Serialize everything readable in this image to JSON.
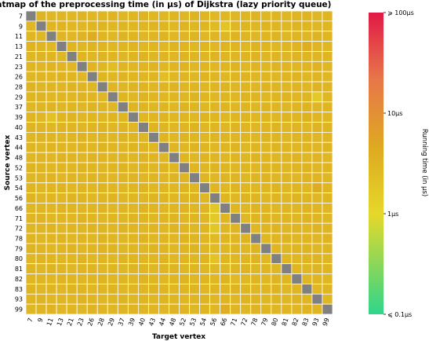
{
  "chart_data": {
    "type": "heatmap",
    "title": "Heatmap of the preprocessing time (in μs) of Dijkstra (lazy priority queue)",
    "xlabel": "Target vertex",
    "ylabel": "Source vertex",
    "rows": [
      "7",
      "9",
      "11",
      "13",
      "21",
      "23",
      "26",
      "28",
      "29",
      "37",
      "39",
      "40",
      "43",
      "44",
      "48",
      "52",
      "53",
      "54",
      "56",
      "66",
      "71",
      "72",
      "78",
      "79",
      "80",
      "81",
      "82",
      "83",
      "93",
      "99"
    ],
    "cols": [
      "7",
      "9",
      "11",
      "13",
      "21",
      "23",
      "26",
      "28",
      "29",
      "37",
      "39",
      "40",
      "43",
      "44",
      "48",
      "52",
      "53",
      "54",
      "56",
      "66",
      "71",
      "72",
      "78",
      "79",
      "80",
      "81",
      "82",
      "83",
      "93",
      "99"
    ],
    "diagonal": "no value (self-pair)",
    "values_us": [
      [
        null,
        3.2,
        3.0,
        3.1,
        3.0,
        3.2,
        2.9,
        3.1,
        3.3,
        3.0,
        3.1,
        3.2,
        2.9,
        3.0,
        3.1,
        3.0,
        3.2,
        3.1,
        2.8,
        2.9,
        3.0,
        3.1,
        3.2,
        3.0,
        3.1,
        3.0,
        3.1,
        3.2,
        3.0,
        3.1
      ],
      [
        3.0,
        null,
        3.1,
        3.2,
        2.9,
        3.0,
        3.1,
        3.3,
        3.0,
        3.1,
        2.9,
        3.0,
        3.2,
        3.1,
        3.0,
        3.2,
        3.0,
        3.1,
        2.7,
        1.9,
        3.0,
        3.1,
        3.0,
        3.2,
        3.1,
        3.0,
        3.2,
        3.1,
        3.0,
        3.1
      ],
      [
        3.1,
        3.0,
        null,
        3.1,
        3.0,
        3.2,
        4.2,
        3.1,
        3.0,
        3.2,
        3.1,
        3.0,
        3.1,
        3.2,
        3.0,
        3.1,
        3.2,
        3.0,
        3.1,
        3.0,
        3.2,
        3.1,
        3.0,
        3.1,
        3.2,
        3.0,
        3.1,
        3.0,
        3.2,
        3.1
      ],
      [
        3.2,
        3.1,
        3.0,
        null,
        3.1,
        3.0,
        3.2,
        3.1,
        3.0,
        3.1,
        3.2,
        3.0,
        3.1,
        3.0,
        3.2,
        3.1,
        3.0,
        3.1,
        3.0,
        3.2,
        3.1,
        3.0,
        3.2,
        3.1,
        3.0,
        3.1,
        3.3,
        4.0,
        3.1,
        3.0
      ],
      [
        3.0,
        3.2,
        3.1,
        3.0,
        null,
        3.1,
        3.0,
        3.2,
        3.1,
        3.0,
        3.1,
        3.2,
        3.0,
        3.1,
        3.0,
        3.2,
        3.1,
        3.0,
        3.2,
        3.1,
        3.0,
        3.1,
        3.2,
        3.0,
        3.1,
        3.0,
        3.2,
        3.1,
        3.0,
        3.1
      ],
      [
        3.1,
        3.0,
        3.2,
        3.1,
        3.0,
        null,
        3.1,
        3.0,
        2.4,
        3.1,
        3.0,
        3.1,
        3.2,
        3.0,
        3.1,
        3.2,
        3.0,
        3.1,
        3.0,
        3.1,
        3.2,
        3.0,
        3.1,
        3.0,
        3.2,
        3.1,
        3.0,
        3.1,
        3.2,
        3.0
      ],
      [
        3.0,
        3.1,
        3.0,
        3.2,
        3.1,
        3.0,
        null,
        3.1,
        3.0,
        3.2,
        3.1,
        3.0,
        3.1,
        2.3,
        3.0,
        3.1,
        3.0,
        3.2,
        3.1,
        3.0,
        3.1,
        3.2,
        3.0,
        3.1,
        3.0,
        3.1,
        3.2,
        3.0,
        3.1,
        3.0
      ],
      [
        3.2,
        3.0,
        3.1,
        3.0,
        3.2,
        3.1,
        3.0,
        null,
        3.1,
        3.0,
        3.2,
        3.1,
        3.0,
        3.1,
        3.2,
        3.0,
        3.1,
        3.0,
        3.1,
        3.2,
        3.0,
        3.1,
        3.0,
        3.2,
        3.1,
        3.0,
        3.1,
        3.0,
        3.2,
        3.1
      ],
      [
        3.1,
        3.2,
        3.0,
        3.1,
        3.0,
        3.2,
        3.1,
        3.0,
        null,
        3.1,
        3.0,
        3.2,
        3.1,
        3.0,
        3.1,
        3.0,
        3.2,
        3.1,
        3.0,
        3.1,
        3.0,
        3.2,
        3.1,
        3.0,
        3.1,
        3.2,
        3.0,
        3.1,
        1.6,
        3.0
      ],
      [
        3.0,
        3.1,
        3.2,
        3.0,
        3.1,
        3.0,
        3.2,
        3.1,
        3.0,
        null,
        3.2,
        3.1,
        3.0,
        3.1,
        3.0,
        3.2,
        3.1,
        3.0,
        3.1,
        3.2,
        3.0,
        3.1,
        3.0,
        3.2,
        3.1,
        3.0,
        3.1,
        3.2,
        3.0,
        3.1
      ],
      [
        3.1,
        3.0,
        2.1,
        3.1,
        3.2,
        3.0,
        3.1,
        3.0,
        3.2,
        3.1,
        null,
        3.0,
        3.1,
        3.2,
        3.0,
        3.1,
        3.0,
        3.2,
        3.1,
        3.0,
        3.1,
        3.2,
        3.0,
        3.1,
        3.0,
        3.2,
        3.1,
        3.6,
        3.1,
        3.0
      ],
      [
        3.2,
        3.1,
        3.0,
        3.2,
        3.1,
        3.0,
        3.1,
        3.2,
        3.0,
        3.1,
        3.0,
        null,
        3.2,
        3.1,
        3.0,
        3.1,
        3.2,
        3.0,
        3.1,
        3.0,
        3.2,
        3.1,
        3.0,
        3.1,
        3.2,
        3.0,
        3.1,
        3.0,
        3.2,
        3.1
      ],
      [
        3.0,
        3.2,
        3.1,
        3.0,
        3.1,
        3.2,
        3.0,
        3.1,
        3.0,
        3.2,
        3.1,
        3.0,
        null,
        3.1,
        3.0,
        3.2,
        3.1,
        3.0,
        3.1,
        3.2,
        3.0,
        3.1,
        3.0,
        3.2,
        3.1,
        3.0,
        3.1,
        3.2,
        3.0,
        3.1
      ],
      [
        3.1,
        3.0,
        3.2,
        3.1,
        3.0,
        3.1,
        3.0,
        3.2,
        3.1,
        3.0,
        3.2,
        3.1,
        3.0,
        null,
        3.1,
        3.0,
        3.2,
        3.1,
        3.0,
        3.1,
        3.2,
        3.0,
        3.1,
        3.0,
        3.2,
        3.1,
        3.0,
        3.1,
        3.0,
        3.2
      ],
      [
        3.0,
        3.1,
        3.0,
        3.2,
        3.1,
        3.0,
        3.2,
        3.1,
        3.0,
        3.1,
        3.0,
        3.2,
        3.1,
        3.0,
        null,
        3.1,
        3.0,
        3.2,
        3.1,
        3.0,
        3.1,
        3.0,
        3.2,
        3.1,
        3.0,
        3.1,
        3.2,
        3.0,
        3.1,
        3.0
      ],
      [
        3.2,
        3.1,
        3.0,
        3.1,
        3.0,
        3.2,
        3.1,
        3.0,
        3.1,
        3.2,
        3.0,
        3.1,
        3.0,
        3.2,
        3.1,
        null,
        3.1,
        3.0,
        3.2,
        3.1,
        3.0,
        3.1,
        3.0,
        3.2,
        3.1,
        3.0,
        3.1,
        3.2,
        3.0,
        3.1
      ],
      [
        3.0,
        3.1,
        3.2,
        3.0,
        3.1,
        3.0,
        3.2,
        3.1,
        3.0,
        3.1,
        3.2,
        3.0,
        3.1,
        3.0,
        3.2,
        3.1,
        null,
        3.1,
        3.0,
        3.2,
        3.1,
        3.0,
        3.1,
        3.2,
        3.0,
        3.1,
        3.0,
        3.2,
        3.1,
        3.0
      ],
      [
        3.1,
        3.0,
        3.1,
        3.2,
        3.0,
        3.1,
        3.0,
        3.2,
        3.1,
        3.0,
        3.1,
        3.2,
        3.0,
        3.1,
        3.0,
        3.2,
        3.1,
        null,
        3.1,
        3.0,
        3.2,
        3.1,
        3.0,
        3.1,
        3.2,
        3.0,
        3.1,
        3.0,
        4.2,
        3.1
      ],
      [
        3.2,
        3.0,
        3.1,
        3.0,
        3.2,
        3.1,
        3.0,
        3.1,
        3.2,
        3.0,
        3.1,
        3.0,
        3.2,
        3.1,
        3.0,
        3.1,
        3.2,
        3.0,
        null,
        3.1,
        3.0,
        3.2,
        3.1,
        3.0,
        3.1,
        3.0,
        3.2,
        3.1,
        3.0,
        3.1
      ],
      [
        3.0,
        3.1,
        3.0,
        3.2,
        3.1,
        3.0,
        3.1,
        3.2,
        3.0,
        3.1,
        3.0,
        3.2,
        3.1,
        3.0,
        3.1,
        3.2,
        3.0,
        3.1,
        1.7,
        null,
        3.1,
        3.0,
        3.2,
        3.1,
        3.0,
        3.1,
        3.0,
        3.2,
        3.1,
        3.0
      ],
      [
        3.1,
        3.2,
        3.0,
        3.1,
        3.0,
        3.2,
        3.1,
        3.0,
        3.1,
        3.0,
        3.2,
        3.1,
        3.0,
        3.1,
        3.2,
        3.0,
        3.1,
        3.0,
        1.6,
        3.1,
        null,
        3.0,
        3.1,
        3.2,
        3.0,
        3.1,
        3.0,
        3.2,
        3.1,
        3.0
      ],
      [
        3.0,
        3.1,
        3.2,
        3.0,
        3.1,
        3.0,
        3.2,
        3.1,
        3.0,
        3.2,
        3.1,
        3.0,
        3.1,
        3.0,
        3.2,
        3.1,
        3.0,
        3.1,
        1.8,
        3.0,
        3.1,
        null,
        3.0,
        3.1,
        3.2,
        3.0,
        3.1,
        3.0,
        3.2,
        3.1
      ],
      [
        3.1,
        3.0,
        3.1,
        3.2,
        3.0,
        3.1,
        3.0,
        3.2,
        3.1,
        3.0,
        3.1,
        3.2,
        3.0,
        3.1,
        3.0,
        3.2,
        3.1,
        3.0,
        2.6,
        3.1,
        3.0,
        3.2,
        null,
        3.0,
        3.1,
        3.2,
        3.0,
        3.1,
        3.0,
        3.2
      ],
      [
        3.2,
        3.1,
        3.0,
        3.1,
        3.2,
        3.0,
        3.1,
        3.3,
        3.2,
        3.0,
        3.1,
        3.0,
        3.2,
        3.1,
        3.0,
        3.1,
        3.2,
        3.0,
        2.7,
        3.0,
        3.1,
        3.0,
        3.2,
        null,
        3.1,
        3.0,
        3.1,
        3.2,
        3.0,
        3.1
      ],
      [
        3.0,
        3.2,
        3.1,
        3.0,
        3.1,
        3.2,
        3.0,
        3.1,
        3.0,
        3.2,
        3.1,
        3.0,
        3.1,
        3.2,
        3.0,
        3.1,
        3.0,
        3.2,
        2.0,
        3.1,
        3.0,
        3.1,
        3.2,
        3.0,
        null,
        3.1,
        3.0,
        3.1,
        3.2,
        3.0
      ],
      [
        3.1,
        3.0,
        3.2,
        3.1,
        3.0,
        3.1,
        3.2,
        3.0,
        3.1,
        3.0,
        3.2,
        3.1,
        3.0,
        3.1,
        3.2,
        3.0,
        3.1,
        3.0,
        2.8,
        3.0,
        3.1,
        3.2,
        3.0,
        3.1,
        3.0,
        null,
        3.1,
        3.0,
        3.2,
        3.1
      ],
      [
        3.0,
        3.1,
        3.0,
        3.2,
        3.1,
        3.0,
        3.1,
        3.2,
        3.0,
        3.1,
        3.0,
        3.2,
        3.1,
        3.0,
        3.1,
        3.2,
        3.0,
        3.1,
        3.0,
        3.2,
        2.6,
        3.0,
        3.1,
        3.0,
        3.2,
        3.1,
        null,
        3.0,
        3.1,
        3.0
      ],
      [
        3.2,
        3.0,
        3.1,
        3.0,
        3.2,
        3.1,
        3.0,
        3.1,
        3.2,
        3.0,
        3.1,
        3.0,
        3.2,
        3.1,
        3.0,
        3.1,
        3.2,
        3.0,
        3.1,
        3.0,
        3.2,
        3.1,
        3.0,
        3.1,
        3.2,
        3.0,
        3.1,
        null,
        3.0,
        3.1
      ],
      [
        3.1,
        3.2,
        3.0,
        3.1,
        3.0,
        3.2,
        3.1,
        3.0,
        3.1,
        3.2,
        3.0,
        3.1,
        3.0,
        3.2,
        3.1,
        3.0,
        3.1,
        3.2,
        3.0,
        3.1,
        3.0,
        3.2,
        3.1,
        3.0,
        3.1,
        3.0,
        3.2,
        3.1,
        null,
        3.0
      ],
      [
        3.0,
        3.1,
        3.2,
        3.0,
        3.1,
        3.0,
        3.2,
        3.1,
        3.0,
        3.1,
        3.2,
        3.0,
        3.1,
        3.0,
        3.2,
        3.1,
        3.0,
        3.1,
        3.0,
        4.0,
        3.1,
        3.0,
        3.2,
        3.1,
        3.0,
        3.1,
        3.0,
        3.2,
        3.1,
        null
      ]
    ],
    "colorbar": {
      "label": "Running time (in μs)",
      "scale": "log",
      "range_us": [
        0.1,
        100
      ],
      "ticks": [
        {
          "value": 100,
          "label": "⩾ 100μs"
        },
        {
          "value": 10,
          "label": "10μs"
        },
        {
          "value": 1,
          "label": "1μs"
        },
        {
          "value": 0.1,
          "label": "⩽ 0.1μs"
        }
      ],
      "colors": [
        "#2ed68a",
        "#e6d82a",
        "#ddaa20",
        "#e8764a",
        "#e01a47"
      ]
    },
    "diagonal_color": "#808080",
    "grid": false
  }
}
